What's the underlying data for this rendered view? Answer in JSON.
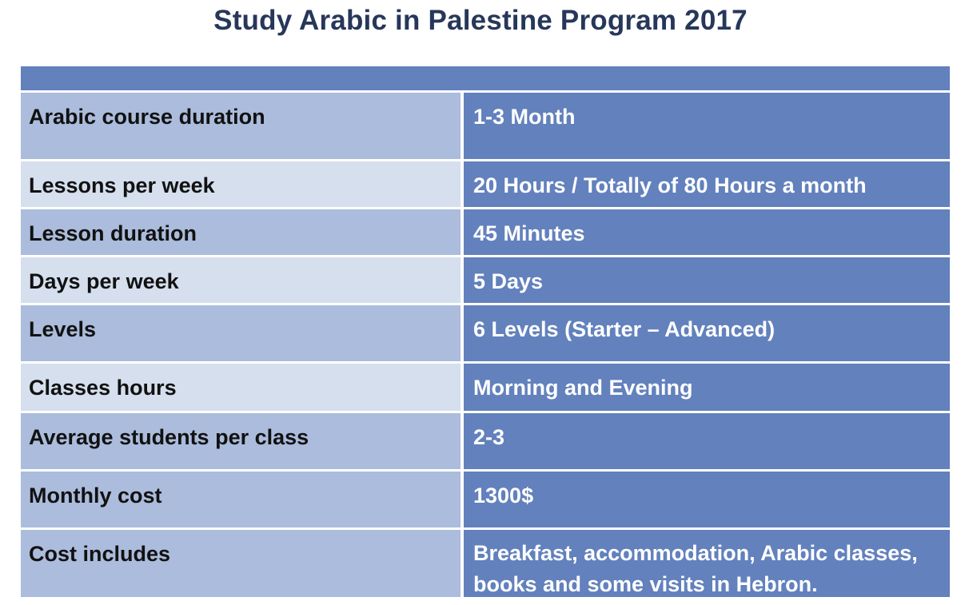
{
  "title": "Study Arabic in Palestine Program 2017",
  "table": {
    "rows": [
      {
        "label": "Arabic course duration",
        "value": "1-3 Month"
      },
      {
        "label": "Lessons per week",
        "value": "20 Hours / Totally of 80 Hours a month"
      },
      {
        "label": "Lesson duration",
        "value": "45 Minutes"
      },
      {
        "label": "Days per week",
        "value": "5 Days"
      },
      {
        "label": "Levels",
        "value": "6 Levels (Starter – Advanced)"
      },
      {
        "label": "Classes hours",
        "value": "Morning and Evening"
      },
      {
        "label": "Average students per class",
        "value": "2-3"
      },
      {
        "label": "Monthly cost",
        "value": "1300$"
      },
      {
        "label": "Cost includes",
        "value": "Breakfast, accommodation, Arabic classes, books and some visits in Hebron."
      }
    ]
  },
  "colors": {
    "title": "#27375a",
    "header_band": "#6281bd",
    "value_cell": "#6281bd",
    "label_dark": "#abbcdc",
    "label_light": "#d5dfee"
  }
}
